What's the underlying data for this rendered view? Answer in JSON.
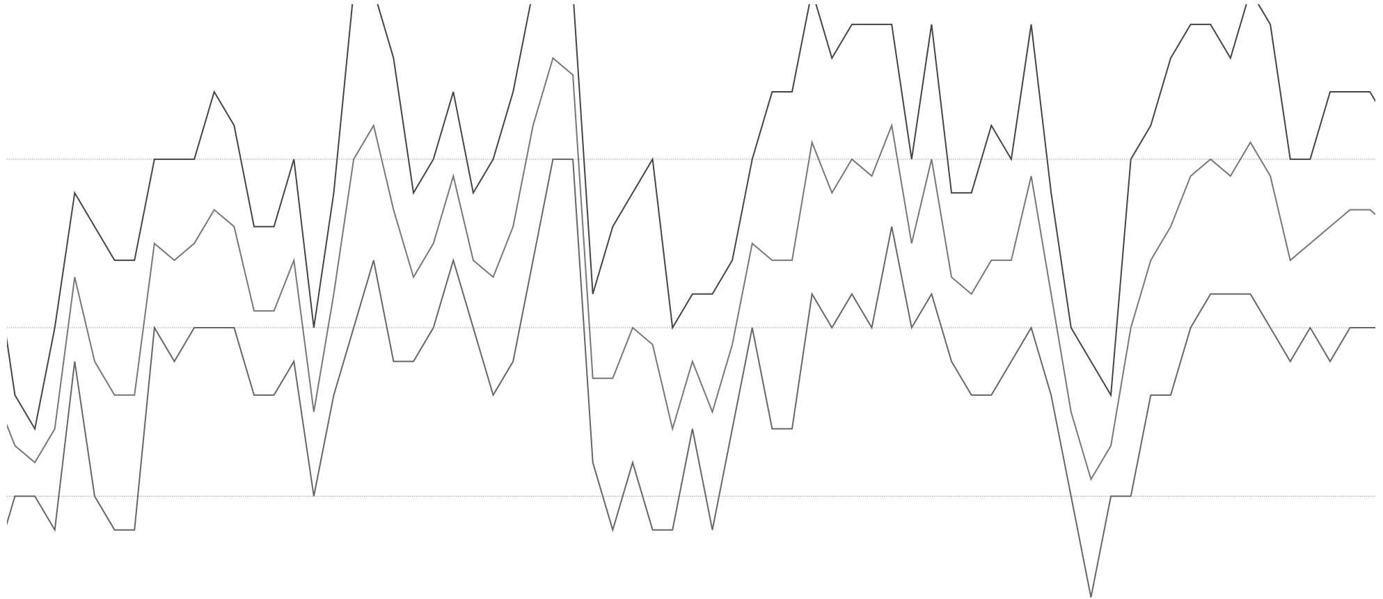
{
  "chart_data": {
    "type": "line",
    "x": [
      0,
      1,
      2,
      3,
      4,
      5,
      6,
      7,
      8,
      9,
      10,
      11,
      12,
      13,
      14,
      15,
      16,
      17,
      18,
      19,
      20,
      21,
      22,
      23,
      24,
      25,
      26,
      27,
      28,
      29,
      30,
      31,
      32,
      33,
      34,
      35,
      36,
      37,
      38,
      39,
      40,
      41,
      42,
      43,
      44,
      45,
      46,
      47,
      48,
      49,
      50,
      51,
      52,
      53,
      54,
      55,
      56,
      57,
      58,
      59,
      60,
      61,
      62,
      63,
      64,
      65,
      66,
      67,
      68,
      69,
      70
    ],
    "series": [
      {
        "color": "#444444",
        "values": [
          7,
          3,
          2,
          5,
          9,
          8,
          7,
          7,
          10,
          10,
          10,
          12,
          11,
          8,
          8,
          10,
          5,
          9,
          15,
          15,
          13,
          9,
          10,
          12,
          9,
          10,
          12,
          15,
          15,
          15,
          6,
          8,
          9,
          10,
          5,
          6,
          6,
          7,
          10,
          12,
          12,
          15,
          13,
          14,
          14,
          14,
          10,
          14,
          9,
          9,
          11,
          10,
          14,
          9,
          5,
          4,
          3,
          10,
          11,
          13,
          14,
          14,
          13,
          15,
          14,
          10,
          10,
          12,
          12,
          12,
          11
        ]
      },
      {
        "color": "#777777",
        "values": [
          3,
          1.5,
          1,
          2,
          6.5,
          4,
          3,
          3,
          7.5,
          7,
          7.5,
          8.5,
          8,
          5.5,
          5.5,
          7,
          2.5,
          6,
          10,
          11,
          8.5,
          6.5,
          7.5,
          9.5,
          7,
          6.5,
          8,
          11,
          13,
          12.5,
          3.5,
          3.5,
          5,
          4.5,
          2,
          4,
          2.5,
          4.5,
          7.5,
          7,
          7,
          10.5,
          9,
          10,
          9.5,
          11,
          7.5,
          10,
          6.5,
          6,
          7,
          7,
          9.5,
          6,
          2.5,
          0.5,
          1.5,
          5,
          7,
          8,
          9.5,
          10,
          9.5,
          10.5,
          9.5,
          7,
          7.5,
          8,
          8.5,
          8.5,
          8
        ]
      },
      {
        "color": "#666666",
        "values": [
          -2,
          0,
          0,
          -1,
          4,
          0,
          -1,
          -1,
          5,
          4,
          5,
          5,
          5,
          3,
          3,
          4,
          0,
          3,
          5,
          7,
          4,
          4,
          5,
          7,
          5,
          3,
          4,
          7,
          10,
          10,
          1,
          -1,
          1,
          -1,
          -1,
          2,
          -1,
          2,
          5,
          2,
          2,
          6,
          5,
          6,
          5,
          8,
          5,
          6,
          4,
          3,
          3,
          4,
          5,
          3,
          0,
          -3,
          0,
          0,
          3,
          3,
          5,
          6,
          6,
          6,
          5,
          4,
          5,
          4,
          5,
          5,
          5
        ]
      }
    ],
    "xlim": [
      0.6,
      69.27
    ],
    "ylim": [
      -3.05,
      14.6
    ],
    "yticks": [
      0,
      5,
      10
    ],
    "grid": true
  }
}
